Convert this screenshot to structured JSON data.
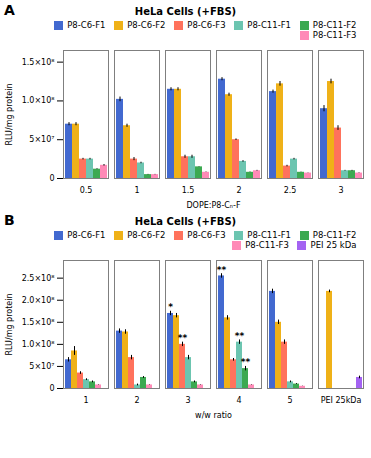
{
  "chart_data": [
    {
      "type": "bar",
      "panel_label": "A",
      "title": "HeLa Cells (+FBS)",
      "xlabel": "DOPE:P8-Cₙ-F",
      "ylabel": "RLU/mg protein",
      "categories": [
        "0.5",
        "1",
        "1.5",
        "2",
        "2.5",
        "3"
      ],
      "series": [
        {
          "name": "P8-C6-F1",
          "values": [
            70000000.0,
            102000000.0,
            115000000.0,
            128000000.0,
            112000000.0,
            90000000.0
          ],
          "errors": [
            2000000.0,
            3000000.0,
            2000000.0,
            2000000.0,
            2000000.0,
            4000000.0
          ]
        },
        {
          "name": "P8-C6-F2",
          "values": [
            70000000.0,
            68000000.0,
            115000000.0,
            108000000.0,
            122000000.0,
            125000000.0
          ],
          "errors": [
            2000000.0,
            2000000.0,
            2000000.0,
            2000000.0,
            3000000.0,
            3000000.0
          ]
        },
        {
          "name": "P8-C6-F3",
          "values": [
            25000000.0,
            25000000.0,
            28000000.0,
            50000000.0,
            16000000.0,
            65000000.0
          ],
          "errors": [
            1000000.0,
            2000000.0,
            2000000.0,
            1000000.0,
            1000000.0,
            3000000.0
          ]
        },
        {
          "name": "P8-C11-F1",
          "values": [
            25000000.0,
            20000000.0,
            28000000.0,
            22000000.0,
            25000000.0,
            10000000.0
          ],
          "errors": [
            1000000.0,
            1000000.0,
            2000000.0,
            1000000.0,
            1000000.0,
            500000.0
          ]
        },
        {
          "name": "P8-C11-F2",
          "values": [
            12000000.0,
            5000000.0,
            15000000.0,
            8000000.0,
            8000000.0,
            10000000.0
          ],
          "errors": [
            500000.0,
            300000.0,
            300000.0,
            300000.0,
            200000.0,
            500000.0
          ]
        },
        {
          "name": "P8-C11-F3",
          "values": [
            17000000.0,
            5000000.0,
            8000000.0,
            10000000.0,
            7000000.0,
            7000000.0
          ],
          "errors": [
            1000000.0,
            300000.0,
            300000.0,
            500000.0,
            200000.0,
            300000.0
          ]
        }
      ],
      "ylim": [
        0,
        165000000.0
      ],
      "yticks": [
        0,
        {
          "value": 50000000.0,
          "label": "5×10⁷"
        },
        {
          "value": 100000000.0,
          "label": "1.0×10⁸"
        },
        {
          "value": 150000000.0,
          "label": "1.5×10⁸"
        }
      ],
      "legend": "upper right"
    },
    {
      "type": "bar",
      "panel_label": "B",
      "title": "HeLa Cells (+FBS)",
      "xlabel": "w/w ratio",
      "ylabel": "RLU/mg protein",
      "categories": [
        "1",
        "2",
        "3",
        "4",
        "5",
        "PEI 25kDa"
      ],
      "series": [
        {
          "name": "P8-C6-F1",
          "values": [
            65000000.0,
            130000000.0,
            170000000.0,
            255000000.0,
            220000000.0,
            0.0
          ],
          "errors": [
            5000000.0,
            5000000.0,
            5000000.0,
            5000000.0,
            5000000.0,
            0.0
          ]
        },
        {
          "name": "P8-C6-F2",
          "values": [
            85000000.0,
            128000000.0,
            165000000.0,
            160000000.0,
            150000000.0,
            220000000.0
          ],
          "errors": [
            10000000.0,
            5000000.0,
            5000000.0,
            5000000.0,
            5000000.0,
            3000000.0
          ]
        },
        {
          "name": "P8-C6-F3",
          "values": [
            35000000.0,
            70000000.0,
            100000000.0,
            65000000.0,
            105000000.0,
            0.0
          ],
          "errors": [
            3000000.0,
            5000000.0,
            5000000.0,
            3000000.0,
            5000000.0,
            0.0
          ]
        },
        {
          "name": "P8-C11-F1",
          "values": [
            20000000.0,
            8000000.0,
            70000000.0,
            105000000.0,
            15000000.0,
            0.0
          ],
          "errors": [
            2000000.0,
            2000000.0,
            5000000.0,
            5000000.0,
            2000000.0,
            0.0
          ]
        },
        {
          "name": "P8-C11-F2",
          "values": [
            15000000.0,
            25000000.0,
            15000000.0,
            45000000.0,
            10000000.0,
            0.0
          ],
          "errors": [
            2000000.0,
            2000000.0,
            2000000.0,
            5000000.0,
            1000000.0,
            0.0
          ]
        },
        {
          "name": "P8-C11-F3",
          "values": [
            8000000.0,
            8000000.0,
            8000000.0,
            8000000.0,
            5000000.0,
            0.0
          ],
          "errors": [
            500000.0,
            500000.0,
            500000.0,
            500000.0,
            300000.0,
            0.0
          ]
        },
        {
          "name": "PEI 25 kDa",
          "values": [
            0.0,
            0.0,
            0.0,
            0.0,
            0.0,
            25000000.0
          ],
          "errors": [
            0.0,
            0.0,
            0.0,
            0.0,
            0.0,
            3000000.0
          ]
        }
      ],
      "ylim": [
        0,
        290000000.0
      ],
      "yticks": [
        0,
        {
          "value": 50000000.0,
          "label": "5×10⁷"
        },
        {
          "value": 100000000.0,
          "label": "1.0×10⁸"
        },
        {
          "value": 150000000.0,
          "label": "1.5×10⁸"
        },
        {
          "value": 200000000.0,
          "label": "2.0×10⁸"
        },
        {
          "value": 250000000.0,
          "label": "2.5×10⁸"
        }
      ],
      "annotations": [
        {
          "category": "3",
          "series": "P8-C6-F1",
          "text": "*"
        },
        {
          "category": "4",
          "series": "P8-C6-F1",
          "text": "**"
        },
        {
          "category": "3",
          "series": "P8-C6-F3",
          "text": "**"
        },
        {
          "category": "4",
          "series": "P8-C11-F1",
          "text": "**"
        },
        {
          "category": "4",
          "series": "P8-C11-F2",
          "text": "**"
        }
      ],
      "legend": "upper right"
    }
  ]
}
